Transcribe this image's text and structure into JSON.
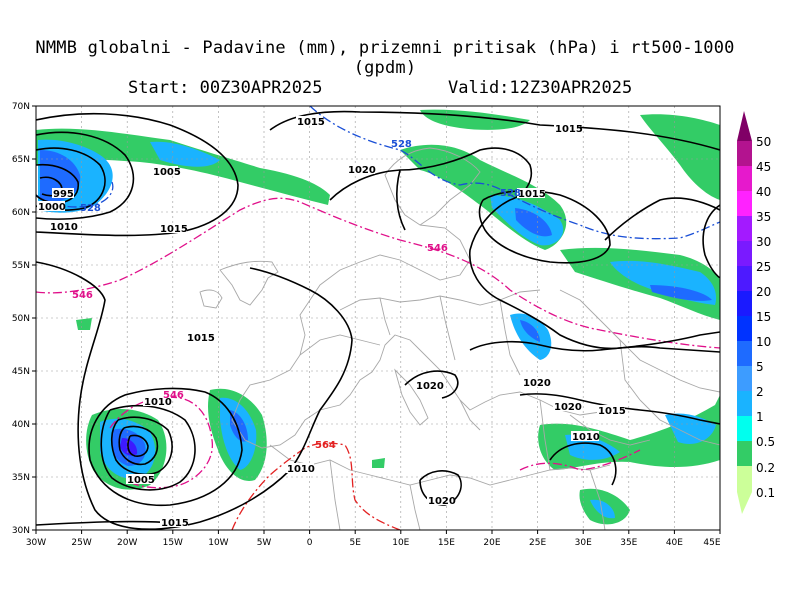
{
  "title": "NMMB globalni - Padavine (mm), prizemni pritisak (hPa) i rt500-1000 (gpdm)",
  "start_label": "Start: 00Z30APR2025",
  "valid_label": "Valid:12Z30APR2025",
  "lat_labels": [
    "70N",
    "65N",
    "60N",
    "55N",
    "50N",
    "45N",
    "40N",
    "35N",
    "30N"
  ],
  "lon_labels": [
    "30W",
    "25W",
    "20W",
    "15W",
    "10W",
    "5W",
    "0",
    "5E",
    "10E",
    "15E",
    "20E",
    "25E",
    "30E",
    "35E",
    "40E",
    "45E"
  ],
  "legend": {
    "levels": [
      "0.1",
      "0.2",
      "0.5",
      "1",
      "2",
      "5",
      "10",
      "15",
      "20",
      "25",
      "30",
      "35",
      "40",
      "45",
      "50"
    ],
    "colors": [
      "#ccff99",
      "#33cc66",
      "#00ffee",
      "#1ab3ff",
      "#3d9cff",
      "#1e6bff",
      "#0033ff",
      "#1a1aff",
      "#4d1aff",
      "#7a1aff",
      "#a31aff",
      "#ff22ff",
      "#e619cc",
      "#b3138f",
      "#800066"
    ]
  },
  "isobar_labels": [
    "1015",
    "1015",
    "1005",
    "995",
    "1000",
    "1010",
    "1015",
    "1020",
    "1015",
    "1015",
    "1010",
    "1005",
    "1020",
    "1020",
    "1020",
    "1015",
    "1010",
    "1010",
    "1020",
    "1015"
  ],
  "thickness_labels": {
    "blue": [
      "528",
      "528",
      "528"
    ],
    "magenta": [
      "546",
      "546",
      "546"
    ],
    "red": [
      "564"
    ]
  },
  "colors": {
    "isobar": "#000000",
    "thickness_528": "#1a4fd6",
    "thickness_546": "#e0108a",
    "thickness_564": "#e32222",
    "borders": "#a8a8a8",
    "grid": "#9a9a9a"
  }
}
